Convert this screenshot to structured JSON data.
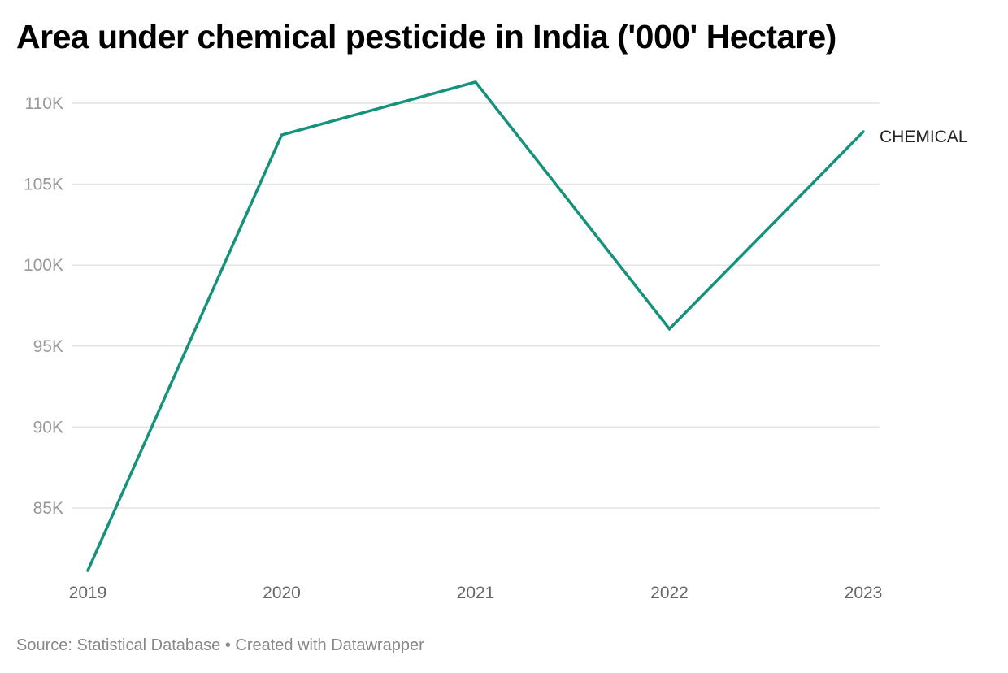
{
  "title": "Area under chemical pesticide in India ('000' Hectare)",
  "footer": {
    "source": "Source: Statistical Database",
    "separator": "•",
    "credit": "Created with Datawrapper"
  },
  "chart_data": {
    "type": "line",
    "title": "Area under chemical pesticide in India ('000' Hectare)",
    "xlabel": "",
    "ylabel": "",
    "categories": [
      "2019",
      "2020",
      "2021",
      "2022",
      "2023"
    ],
    "series": [
      {
        "name": "CHEMICAL",
        "values": [
          81130,
          108040,
          111310,
          96060,
          108240
        ],
        "color": "#15927a"
      }
    ],
    "yticks": [
      85000,
      90000,
      95000,
      100000,
      105000,
      110000
    ],
    "ytick_labels": [
      "85K",
      "90K",
      "95K",
      "100K",
      "105K",
      "110K"
    ],
    "ylim": [
      81000,
      111500
    ],
    "grid": true,
    "legend": "direct label at line end"
  }
}
